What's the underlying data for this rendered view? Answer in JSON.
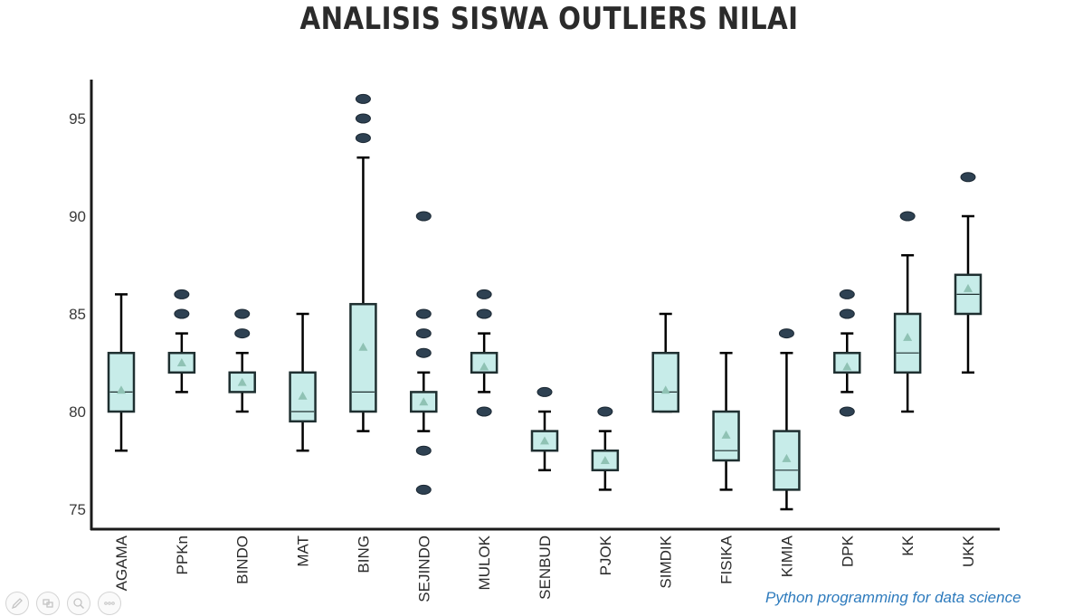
{
  "chart_data": {
    "type": "boxplot",
    "title": "ANALISIS SISWA OUTLIERS NILAI",
    "xlabel": "",
    "ylabel": "",
    "ylim": [
      74,
      97
    ],
    "yticks": [
      75,
      80,
      85,
      90,
      95
    ],
    "categories": [
      "AGAMA",
      "PPKn",
      "BINDO",
      "MAT",
      "BING",
      "SEJINDO",
      "MULOK",
      "SENBUD",
      "PJOK",
      "SIMDIK",
      "FISIKA",
      "KIMIA",
      "DPK",
      "KK",
      "UKK"
    ],
    "boxes": [
      {
        "name": "AGAMA",
        "whisker_low": 78,
        "q1": 80,
        "median": 81,
        "q3": 83,
        "whisker_high": 86,
        "mean": 81.1,
        "outliers": []
      },
      {
        "name": "PPKn",
        "whisker_low": 81,
        "q1": 82,
        "median": 82,
        "q3": 83,
        "whisker_high": 84,
        "mean": 82.5,
        "outliers": [
          85,
          86
        ]
      },
      {
        "name": "BINDO",
        "whisker_low": 80,
        "q1": 81,
        "median": 81,
        "q3": 82,
        "whisker_high": 83,
        "mean": 81.5,
        "outliers": [
          84,
          85
        ]
      },
      {
        "name": "MAT",
        "whisker_low": 78,
        "q1": 79.5,
        "median": 80,
        "q3": 82,
        "whisker_high": 85,
        "mean": 80.8,
        "outliers": []
      },
      {
        "name": "BING",
        "whisker_low": 79,
        "q1": 80,
        "median": 81,
        "q3": 85.5,
        "whisker_high": 93,
        "mean": 83.3,
        "outliers": [
          94,
          95,
          96
        ]
      },
      {
        "name": "SEJINDO",
        "whisker_low": 79,
        "q1": 80,
        "median": 80,
        "q3": 81,
        "whisker_high": 82,
        "mean": 80.5,
        "outliers": [
          76,
          78,
          83,
          84,
          85,
          90
        ]
      },
      {
        "name": "MULOK",
        "whisker_low": 81,
        "q1": 82,
        "median": 82,
        "q3": 83,
        "whisker_high": 84,
        "mean": 82.3,
        "outliers": [
          80,
          85,
          86
        ]
      },
      {
        "name": "SENBUD",
        "whisker_low": 77,
        "q1": 78,
        "median": 78,
        "q3": 79,
        "whisker_high": 80,
        "mean": 78.5,
        "outliers": [
          81
        ]
      },
      {
        "name": "PJOK",
        "whisker_low": 76,
        "q1": 77,
        "median": 77,
        "q3": 78,
        "whisker_high": 79,
        "mean": 77.5,
        "outliers": [
          80
        ]
      },
      {
        "name": "SIMDIK",
        "whisker_low": 80,
        "q1": 80,
        "median": 81,
        "q3": 83,
        "whisker_high": 85,
        "mean": 81.1,
        "outliers": []
      },
      {
        "name": "FISIKA",
        "whisker_low": 76,
        "q1": 77.5,
        "median": 78,
        "q3": 80,
        "whisker_high": 83,
        "mean": 78.8,
        "outliers": []
      },
      {
        "name": "KIMIA",
        "whisker_low": 75,
        "q1": 76,
        "median": 77,
        "q3": 79,
        "whisker_high": 83,
        "mean": 77.6,
        "outliers": [
          84
        ]
      },
      {
        "name": "DPK",
        "whisker_low": 81,
        "q1": 82,
        "median": 82,
        "q3": 83,
        "whisker_high": 84,
        "mean": 82.3,
        "outliers": [
          80,
          85,
          86
        ]
      },
      {
        "name": "KK",
        "whisker_low": 80,
        "q1": 82,
        "median": 83,
        "q3": 85,
        "whisker_high": 88,
        "mean": 83.8,
        "outliers": [
          90
        ]
      },
      {
        "name": "UKK",
        "whisker_low": 82,
        "q1": 85,
        "median": 86,
        "q3": 87,
        "whisker_high": 90,
        "mean": 86.3,
        "outliers": [
          92
        ]
      }
    ],
    "colors": {
      "box_fill": "#c7ece9",
      "box_stroke": "#1e2f30",
      "whisker": "#000000",
      "mean_marker": "#8fc2b4",
      "outlier": "#2e4152",
      "axis": "#1a1a1a"
    }
  },
  "footer": {
    "text": "Python programming for data science"
  },
  "viewer_controls": [
    {
      "name": "pen-icon",
      "label": "pen"
    },
    {
      "name": "slides-icon",
      "label": "slides"
    },
    {
      "name": "zoom-icon",
      "label": "zoom"
    },
    {
      "name": "more-icon",
      "label": "more"
    }
  ]
}
